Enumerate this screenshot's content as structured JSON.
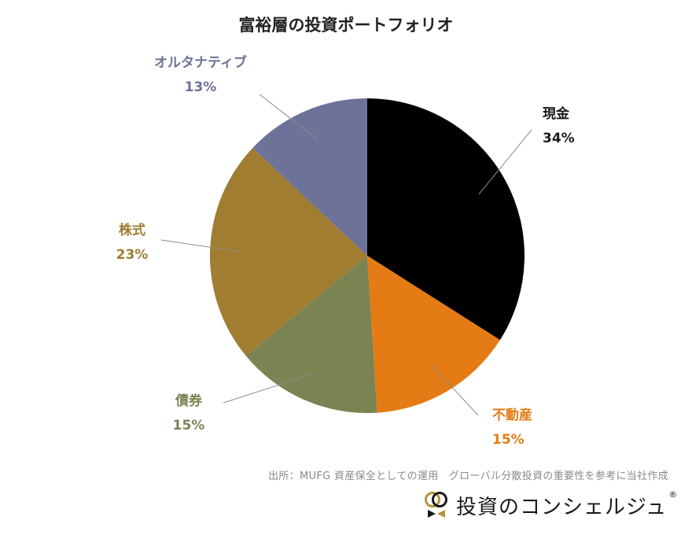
{
  "chart_data": {
    "type": "pie",
    "title": "富裕層の投資ポートフォリオ",
    "slices": [
      {
        "label": "現金",
        "pct_label": "34%",
        "value": 34,
        "color": "#000000"
      },
      {
        "label": "不動産",
        "pct_label": "15%",
        "value": 15,
        "color": "#e57b14"
      },
      {
        "label": "債券",
        "pct_label": "15%",
        "value": 15,
        "color": "#7a8352"
      },
      {
        "label": "株式",
        "pct_label": "23%",
        "value": 23,
        "color": "#a07d31"
      },
      {
        "label": "オルタナティブ",
        "pct_label": "13%",
        "value": 13,
        "color": "#6d7298"
      }
    ],
    "start": "12 o'clock",
    "direction": "clockwise"
  },
  "footer": {
    "source": "出所：MUFG 資産保全としての運用　グローバル分散投資の重要性を参考に当社作成"
  },
  "logo": {
    "text": "投資のコンシェルジュ",
    "reg": "®",
    "colors": {
      "gold": "#b8923a",
      "dark": "#1a1a1a"
    }
  }
}
